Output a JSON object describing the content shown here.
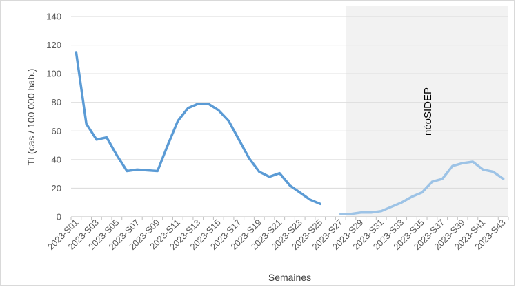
{
  "chart_data": {
    "type": "line",
    "title": "",
    "xlabel": "Semaines",
    "ylabel": "TI (cas / 100 000 hab.)",
    "ylim": [
      0,
      140
    ],
    "yticks": [
      0,
      20,
      40,
      60,
      80,
      100,
      120,
      140
    ],
    "grid": true,
    "categories": [
      "2023-S01",
      "2023-S02",
      "2023-S03",
      "2023-S04",
      "2023-S05",
      "2023-S06",
      "2023-S07",
      "2023-S08",
      "2023-S09",
      "2023-S10",
      "2023-S11",
      "2023-S12",
      "2023-S13",
      "2023-S14",
      "2023-S15",
      "2023-S16",
      "2023-S17",
      "2023-S18",
      "2023-S19",
      "2023-S20",
      "2023-S21",
      "2023-S22",
      "2023-S23",
      "2023-S24",
      "2023-S25",
      "2023-S26",
      "2023-S27",
      "2023-S28",
      "2023-S29",
      "2023-S30",
      "2023-S31",
      "2023-S32",
      "2023-S33",
      "2023-S34",
      "2023-S35",
      "2023-S36",
      "2023-S37",
      "2023-S38",
      "2023-S39",
      "2023-S40",
      "2023-S41",
      "2023-S42",
      "2023-S43"
    ],
    "tick_labels": [
      "2023-S01",
      "2023-S03",
      "2023-S05",
      "2023-S07",
      "2023-S09",
      "2023-S11",
      "2023-S13",
      "2023-S15",
      "2023-S17",
      "2023-S19",
      "2023-S21",
      "2023-S23",
      "2023-S25",
      "2023-S27",
      "2023-S29",
      "2023-S31",
      "2023-S33",
      "2023-S35",
      "2023-S37",
      "2023-S39",
      "2023-S41",
      "2023-S43"
    ],
    "series": [
      {
        "color": "#5b9bd5",
        "values": [
          115,
          65,
          54,
          55.5,
          43,
          32,
          33,
          32.5,
          32,
          50,
          67,
          76,
          79,
          79,
          74.5,
          67,
          54,
          41,
          31.5,
          28,
          30.5,
          22,
          17,
          12,
          9,
          null,
          null,
          null,
          null,
          null,
          null,
          null,
          null,
          null,
          null,
          null,
          null,
          null,
          null,
          null,
          null,
          null,
          null
        ]
      },
      {
        "color": "#9dc3e6",
        "values": [
          null,
          null,
          null,
          null,
          null,
          null,
          null,
          null,
          null,
          null,
          null,
          null,
          null,
          null,
          null,
          null,
          null,
          null,
          null,
          null,
          null,
          null,
          null,
          null,
          null,
          null,
          2,
          2,
          3,
          3,
          4,
          7,
          10,
          14,
          17,
          24.5,
          26.5,
          35.5,
          37.5,
          38.5,
          33,
          31.5,
          26.5
        ]
      }
    ],
    "shaded_region": {
      "from": "2023-S28",
      "to": "2023-S43",
      "color": "#f2f2f2"
    },
    "annotations": [
      {
        "text": "néoSIDEP"
      }
    ]
  }
}
